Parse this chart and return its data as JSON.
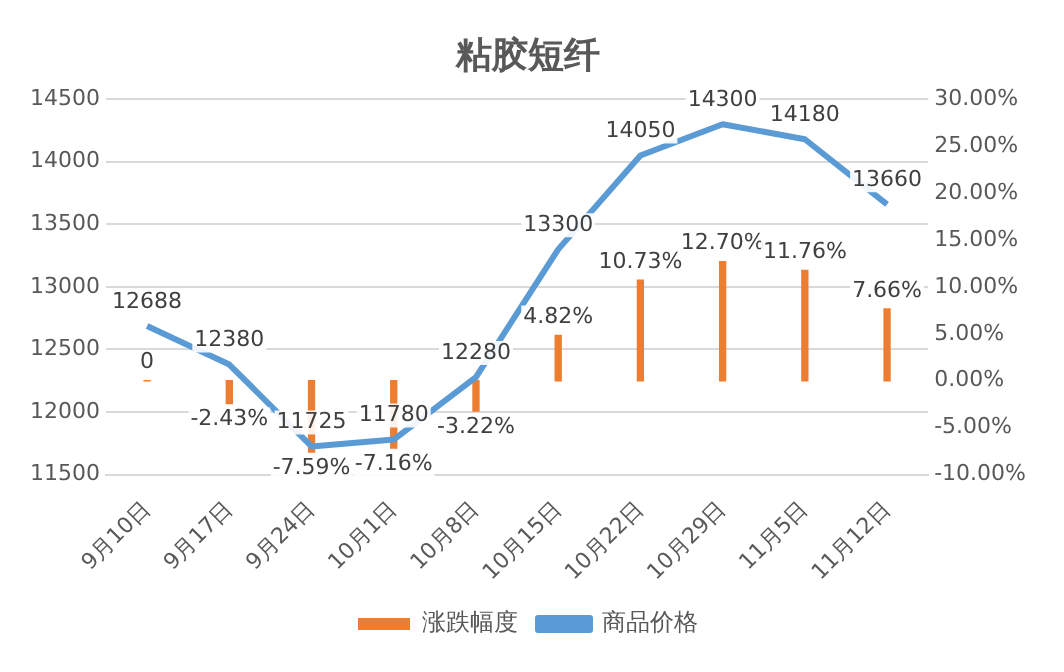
{
  "chart_data": {
    "type": "bar",
    "title": "粘胶短纤",
    "categories": [
      "9月10日",
      "9月17日",
      "9月24日",
      "10月1日",
      "10月8日",
      "10月15日",
      "10月22日",
      "10月29日",
      "11月5日",
      "11月12日"
    ],
    "series": [
      {
        "name": "涨跌幅度",
        "axis": "y2",
        "color": "#ed7d31",
        "values": [
          0,
          -2.43,
          -7.59,
          -7.16,
          -3.22,
          4.82,
          10.73,
          12.7,
          11.76,
          7.66
        ],
        "value_labels": [
          "0",
          "-2.43%",
          "-7.59%",
          "-7.16%",
          "-3.22%",
          "4.82%",
          "10.73%",
          "12.70%",
          "11.76%",
          "7.66%"
        ]
      },
      {
        "name": "商品价格",
        "type": "line",
        "color": "#5b9bd5",
        "values": [
          12688,
          12380,
          11725,
          11780,
          12280,
          13300,
          14050,
          14300,
          14180,
          13660
        ],
        "data_labels": true
      }
    ],
    "ylim": [
      11500,
      14500
    ],
    "yticks": [
      11500,
      12000,
      12500,
      13000,
      13500,
      14000,
      14500
    ],
    "y2lim": [
      -10,
      30
    ],
    "y2ticks": [
      {
        "value": -10,
        "label": "-10.00%"
      },
      {
        "value": -5,
        "label": "-5.00%"
      },
      {
        "value": 0,
        "label": "0.00%"
      },
      {
        "value": 5,
        "label": "5.00%"
      },
      {
        "value": 10,
        "label": "10.00%"
      },
      {
        "value": 15,
        "label": "15.00%"
      },
      {
        "value": 20,
        "label": "20.00%"
      },
      {
        "value": 25,
        "label": "25.00%"
      },
      {
        "value": 30,
        "label": "30.00%"
      }
    ],
    "grid": "y",
    "legend": "bottom",
    "marker": "none",
    "line_style": "solid"
  }
}
